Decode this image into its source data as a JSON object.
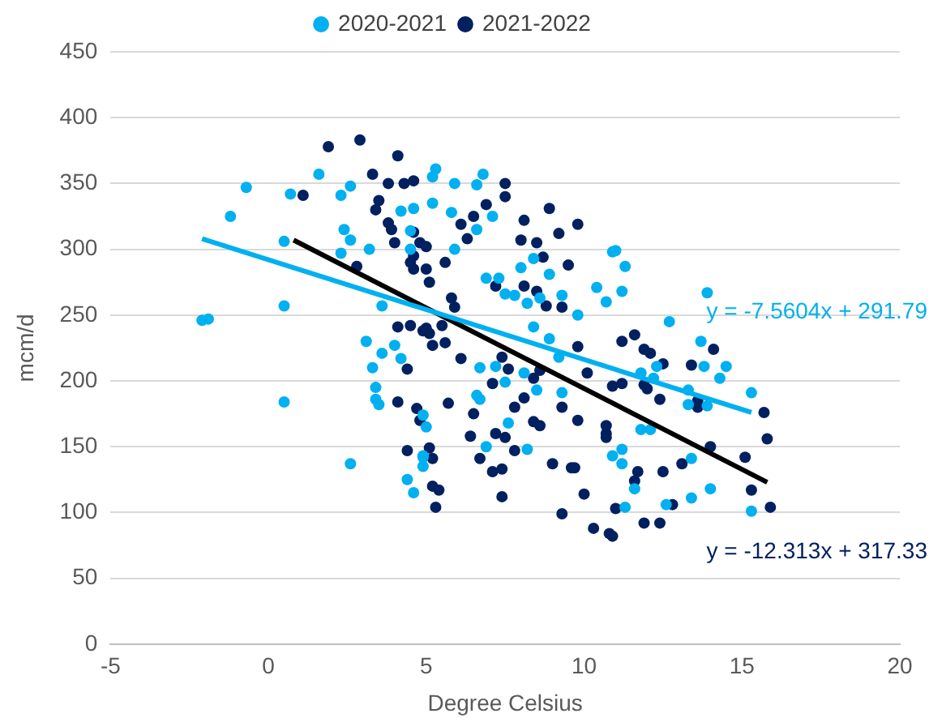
{
  "chart_data": {
    "type": "scatter",
    "xlabel": "Degree Celsius",
    "ylabel": "mcm/d",
    "xlim": [
      -5,
      20
    ],
    "xticks": [
      -5,
      0,
      5,
      10,
      15,
      20
    ],
    "ylim": [
      0,
      450
    ],
    "yticks": [
      0,
      50,
      100,
      150,
      200,
      250,
      300,
      350,
      400,
      450
    ],
    "grid": "y",
    "legend": "top",
    "marker": "circle",
    "series": [
      {
        "name": "2020-2021",
        "color": "#00b0f0",
        "x": [
          -2.1,
          -1.9,
          -1.2,
          -0.7,
          0.5,
          0.5,
          0.5,
          0.7,
          1.6,
          2.3,
          2.6,
          2.4,
          2.6,
          2.3,
          2.6,
          3.2,
          3.1,
          3.6,
          3.6,
          3.3,
          3.4,
          3.4,
          3.5,
          4.0,
          4.2,
          4.4,
          4.6,
          4.9,
          5.0,
          4.2,
          4.6,
          4.5,
          4.5,
          5.2,
          5.3,
          5.9,
          6.8,
          6.6,
          7.1,
          6.6,
          5.9,
          5.8,
          5.2,
          6.9,
          7.3,
          8.0,
          8.4,
          8.9,
          7.5,
          7.8,
          8.2,
          8.6,
          9.3,
          9.8,
          10.4,
          10.9,
          8.4,
          8.9,
          9.2,
          6.7,
          7.2,
          7.5,
          8.1,
          8.5,
          9.3,
          6.6,
          6.7,
          7.6,
          6.9,
          8.2,
          4.9,
          4.9,
          4.9,
          11.0,
          11.3,
          11.2,
          10.7,
          13.9,
          12.7,
          13.7,
          13.8,
          14.5,
          14.3,
          15.3,
          12.3,
          12.2,
          11.8,
          13.3,
          13.9,
          13.3,
          11.8,
          12.1,
          11.2,
          10.9,
          11.2,
          11.6,
          13.4,
          14.0,
          13.4,
          15.3,
          12.6,
          11.3
        ],
        "values": [
          246,
          247,
          325,
          347,
          306,
          257,
          184,
          342,
          357,
          341,
          348,
          315,
          307,
          297,
          137,
          300,
          230,
          257,
          221,
          210,
          195,
          186,
          182,
          227,
          217,
          125,
          115,
          143,
          165,
          329,
          331,
          314,
          300,
          355,
          361,
          350,
          357,
          349,
          325,
          315,
          300,
          328,
          335,
          278,
          278,
          286,
          293,
          281,
          266,
          265,
          259,
          263,
          265,
          250,
          271,
          298,
          241,
          232,
          218,
          210,
          211,
          199,
          206,
          193,
          191,
          189,
          186,
          168,
          150,
          148,
          174,
          142,
          135,
          299,
          287,
          268,
          260,
          267,
          245,
          230,
          211,
          211,
          202,
          191,
          211,
          202,
          206,
          193,
          181,
          182,
          163,
          163,
          148,
          143,
          137,
          118,
          141,
          118,
          111,
          101,
          106,
          104
        ]
      },
      {
        "name": "2021-2022",
        "color": "#002060",
        "x": [
          1.9,
          2.9,
          1.1,
          4.1,
          3.3,
          3.8,
          4.3,
          4.6,
          3.5,
          3.4,
          3.8,
          3.9,
          4.0,
          4.6,
          4.8,
          4.6,
          4.5,
          4.6,
          5.0,
          4.1,
          4.5,
          4.9,
          5.1,
          5.2,
          4.4,
          4.1,
          4.7,
          4.8,
          5.1,
          4.4,
          5.2,
          2.8,
          7.5,
          7.5,
          6.9,
          6.5,
          6.1,
          6.3,
          5.6,
          5.0,
          5.1,
          8.1,
          8.9,
          9.8,
          9.2,
          8.0,
          8.5,
          8.7,
          9.5,
          8.1,
          7.2,
          8.5,
          8.8,
          9.3,
          5.8,
          5.9,
          5.5,
          5.0,
          5.6,
          6.1,
          7.4,
          7.6,
          8.4,
          8.6,
          9.8,
          10.1,
          7.1,
          8.1,
          6.5,
          5.7,
          7.8,
          8.4,
          8.6,
          9.3,
          9.8,
          7.2,
          7.5,
          6.4,
          7.8,
          6.7,
          7.1,
          7.4,
          9.0,
          9.6,
          9.7,
          5.2,
          5.4,
          5.3,
          7.4,
          9.3,
          10.0,
          10.3,
          10.8,
          10.7,
          11.6,
          11.2,
          11.9,
          12.1,
          12.5,
          13.4,
          14.1,
          11.9,
          12.0,
          12.4,
          13.6,
          13.6,
          11.2,
          10.9,
          10.7,
          10.7,
          15.7,
          15.8,
          15.1,
          14.0,
          13.1,
          12.5,
          11.7,
          11.6,
          15.3,
          15.9,
          12.8,
          11.9,
          12.4,
          11.0,
          10.9
        ],
        "values": [
          378,
          383,
          341,
          371,
          357,
          350,
          350,
          352,
          337,
          330,
          320,
          315,
          305,
          313,
          305,
          295,
          290,
          285,
          285,
          241,
          242,
          238,
          236,
          227,
          209,
          184,
          179,
          170,
          149,
          147,
          120,
          287,
          350,
          340,
          334,
          325,
          319,
          308,
          290,
          302,
          275,
          322,
          331,
          319,
          312,
          307,
          305,
          294,
          288,
          272,
          272,
          268,
          257,
          256,
          263,
          256,
          242,
          240,
          229,
          217,
          218,
          209,
          202,
          208,
          226,
          206,
          198,
          187,
          175,
          183,
          180,
          169,
          166,
          180,
          170,
          160,
          157,
          158,
          147,
          141,
          131,
          133,
          137,
          134,
          134,
          141,
          117,
          104,
          112,
          99,
          114,
          88,
          84,
          157,
          235,
          230,
          224,
          221,
          213,
          212,
          224,
          197,
          194,
          186,
          185,
          180,
          198,
          196,
          166,
          160,
          176,
          156,
          142,
          150,
          137,
          131,
          131,
          124,
          117,
          104,
          106,
          92,
          92,
          103,
          82
        ]
      },
      {
        "type": "line",
        "color": "#00b0f0",
        "marker": "none",
        "x": [
          -2.1,
          15.3
        ],
        "values": [
          308,
          176
        ]
      },
      {
        "type": "line",
        "color": "#000000",
        "marker": "none",
        "x": [
          0.8,
          15.8
        ],
        "values": [
          307,
          123
        ]
      }
    ],
    "annotations": [
      "y = -7.5604x + 291.79",
      "y = -12.313x + 317.33"
    ]
  }
}
